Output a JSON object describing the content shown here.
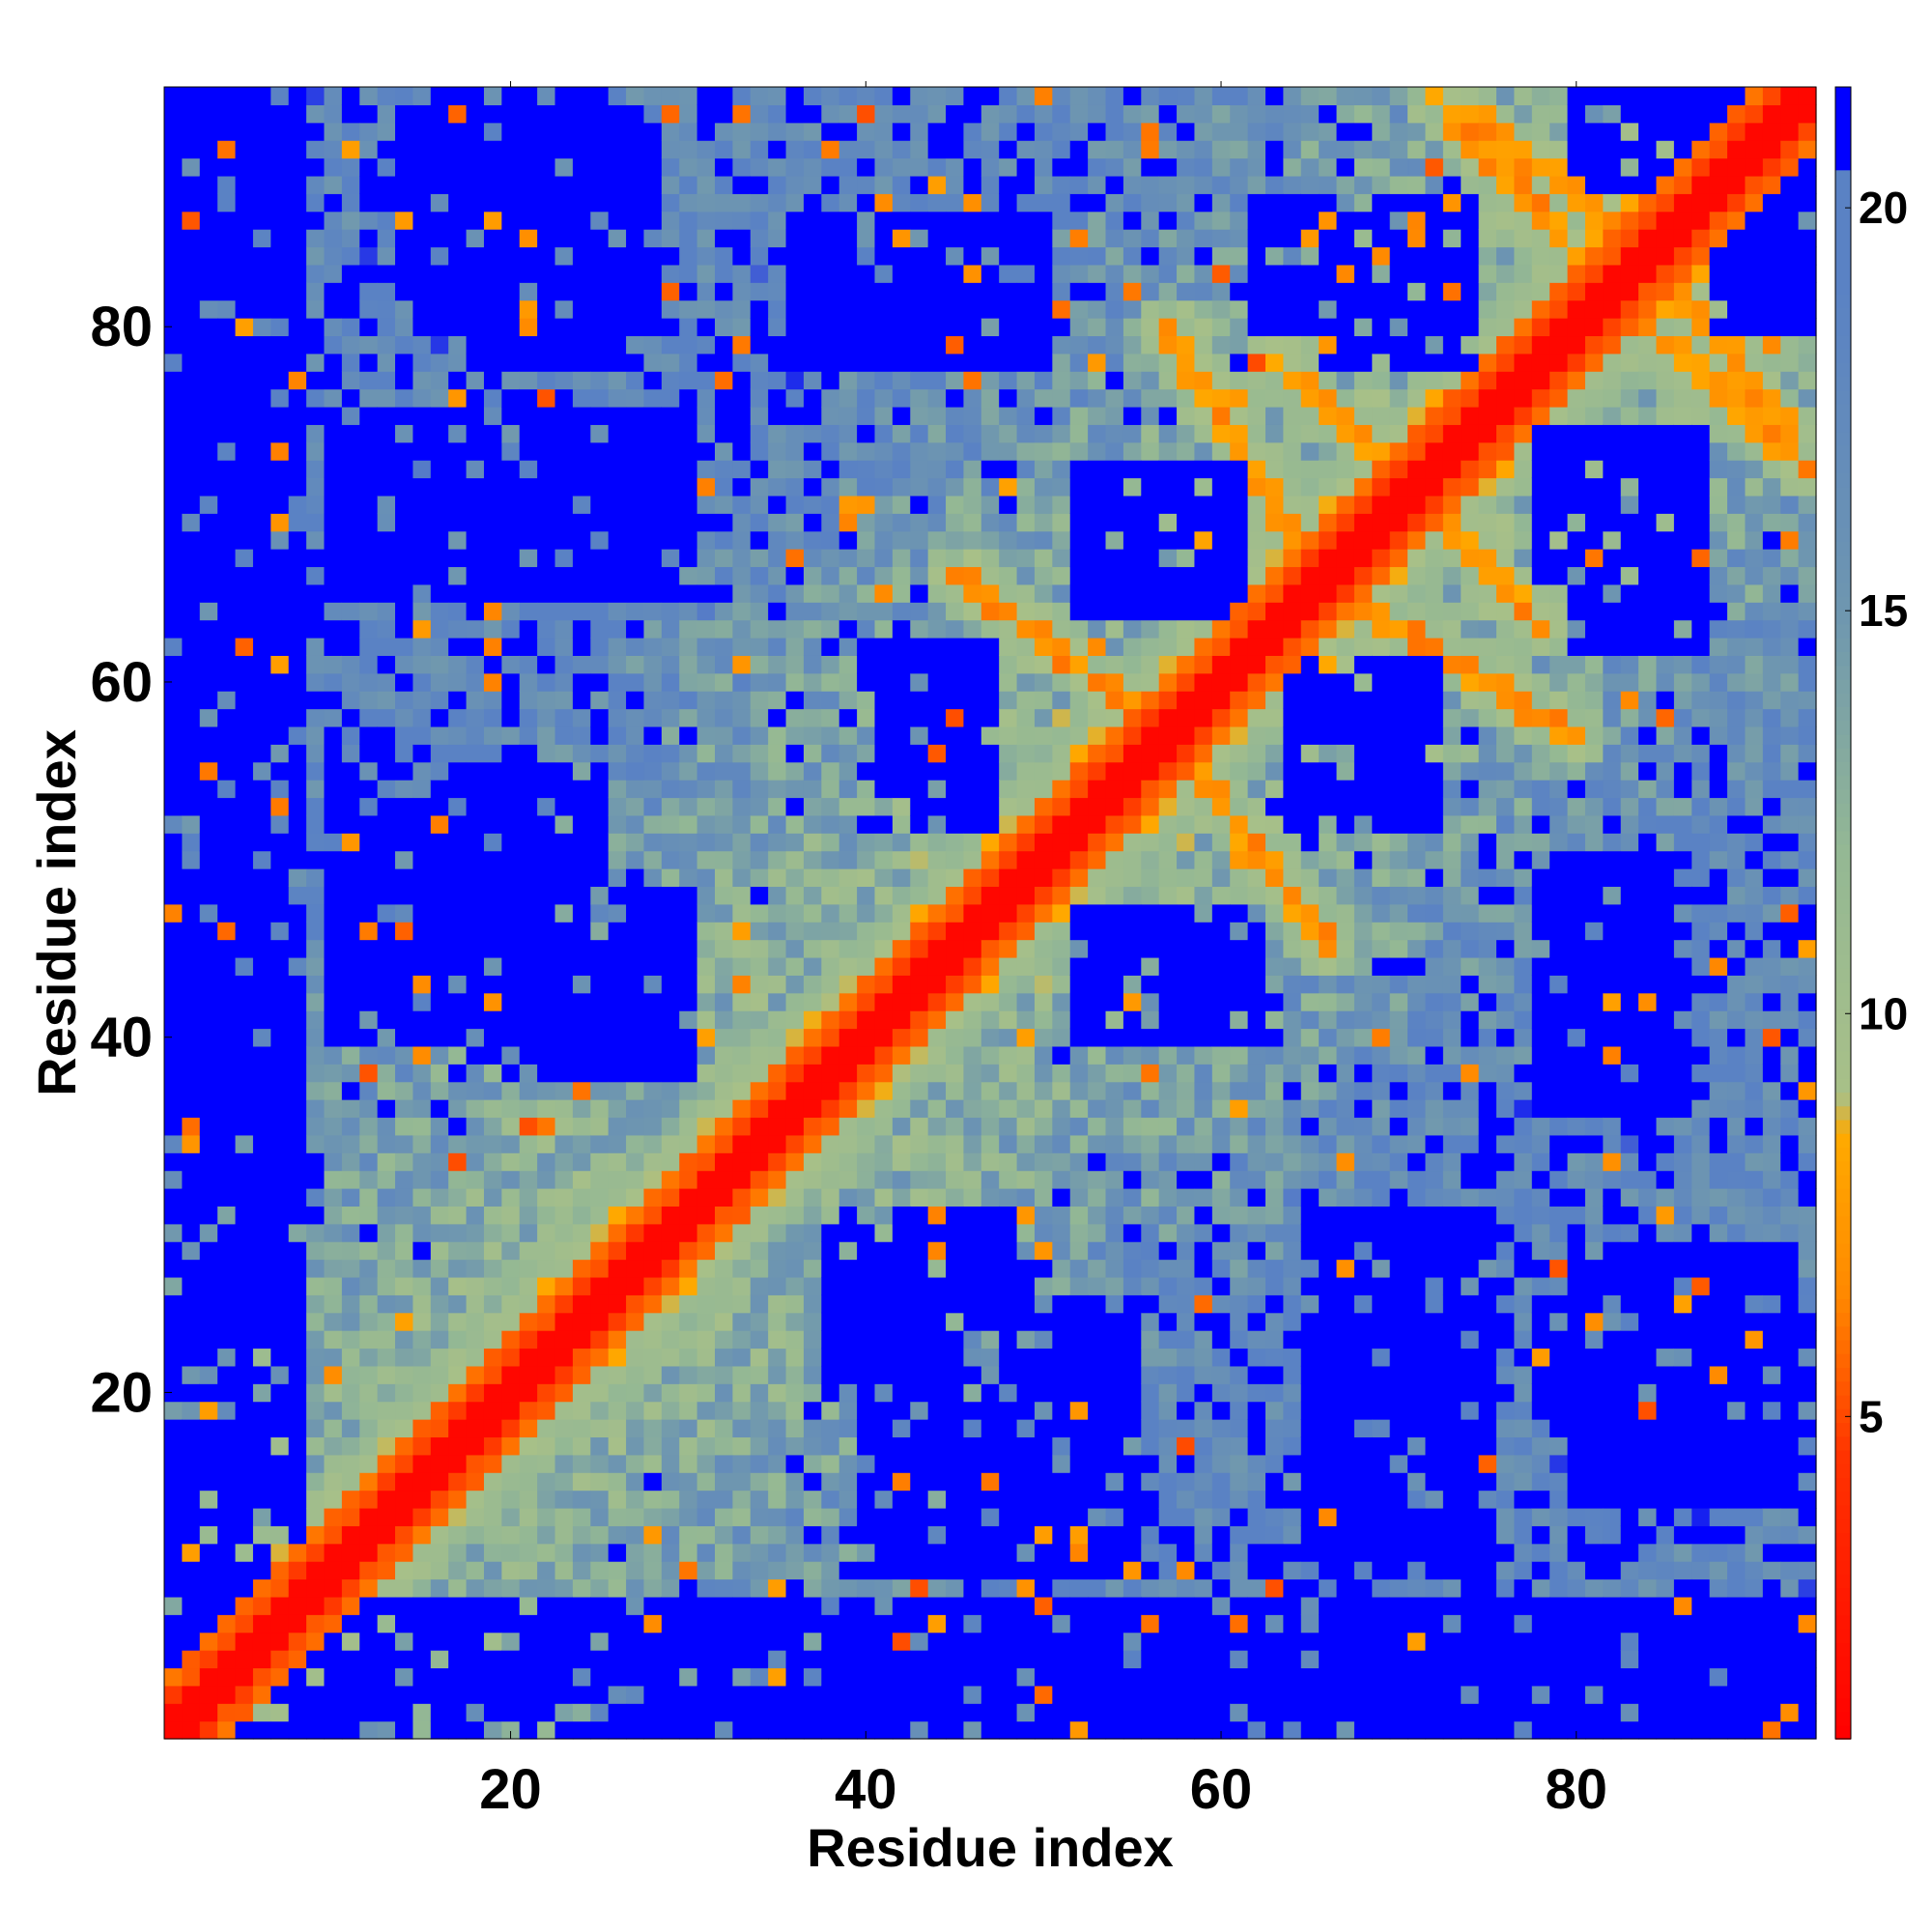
{
  "chart_data": {
    "type": "heatmap",
    "title": "",
    "xlabel": "Residue index",
    "ylabel": "Residue index",
    "n_residues": 93,
    "xlim": [
      0.5,
      93.5
    ],
    "ylim": [
      0.5,
      93.5
    ],
    "x_ticks": [
      20,
      40,
      60,
      80
    ],
    "y_ticks": [
      20,
      40,
      60,
      80
    ],
    "colorbar": {
      "ticks": [
        5,
        10,
        15,
        20
      ],
      "range": [
        1,
        21.5
      ],
      "stops": [
        {
          "value": 1.0,
          "color": "#ff0000"
        },
        {
          "value": 4.5,
          "color": "#ff3300"
        },
        {
          "value": 6.5,
          "color": "#ff8800"
        },
        {
          "value": 8.5,
          "color": "#ffaa00"
        },
        {
          "value": 9.0,
          "color": "#a8c088"
        },
        {
          "value": 12.0,
          "color": "#94b894"
        },
        {
          "value": 15.0,
          "color": "#6e96b0"
        },
        {
          "value": 19.0,
          "color": "#5a82c4"
        },
        {
          "value": 20.4,
          "color": "#5a82c4"
        },
        {
          "value": 20.5,
          "color": "#0000ff"
        },
        {
          "value": 21.5,
          "color": "#0000ff"
        }
      ]
    },
    "matrix_description": "Symmetric residue-residue distance matrix (Angstrom); diagonal distance 0 rendered red, helix contacts orange, distant pairs blue",
    "secondary_structure_contacts": [
      {
        "i_start": 56,
        "i_end": 65,
        "j_start": 71,
        "j_end": 62
      },
      {
        "i_start": 63,
        "i_end": 70,
        "j_start": 78,
        "j_end": 72
      },
      {
        "i_start": 45,
        "i_end": 56,
        "j_start": 66,
        "j_end": 58
      },
      {
        "i_start": 68,
        "i_end": 80,
        "j_start": 64,
        "j_end": 57
      },
      {
        "i_start": 74,
        "i_end": 86,
        "j_start": 92,
        "j_end": 83
      },
      {
        "i_start": 72,
        "i_end": 80,
        "j_start": 93,
        "j_end": 84
      }
    ],
    "blue_regions": [
      {
        "x": [
          1,
          8
        ],
        "y": [
          1,
          93
        ]
      },
      {
        "x": [
          10,
          30
        ],
        "y": [
          1,
          8
        ]
      },
      {
        "x": [
          40,
          55
        ],
        "y": [
          10,
          25
        ]
      },
      {
        "x": [
          65,
          75
        ],
        "y": [
          10,
          30
        ]
      },
      {
        "x": [
          10,
          28
        ],
        "y": [
          66,
          74
        ]
      },
      {
        "x": [
          20,
          30
        ],
        "y": [
          38,
          48
        ]
      },
      {
        "x": [
          40,
          47
        ],
        "y": [
          53,
          62
        ]
      },
      {
        "x": [
          52,
          60
        ],
        "y": [
          65,
          71
        ]
      },
      {
        "x": [
          52,
          60
        ],
        "y": [
          40,
          47
        ]
      },
      {
        "x": [
          64,
          72
        ],
        "y": [
          52,
          61
        ]
      },
      {
        "x": [
          66,
          74
        ],
        "y": [
          78,
          86
        ]
      },
      {
        "x": [
          80,
          87
        ],
        "y": [
          62,
          74
        ]
      },
      {
        "x": [
          78,
          86
        ],
        "y": [
          36,
          50
        ]
      },
      {
        "x": [
          40,
          50
        ],
        "y": [
          78,
          84
        ]
      },
      {
        "x": [
          18,
          26
        ],
        "y": [
          78,
          86
        ]
      },
      {
        "x": [
          80,
          92
        ],
        "y": [
          14,
          28
        ]
      },
      {
        "x": [
          80,
          93
        ],
        "y": [
          88,
          93
        ]
      }
    ]
  }
}
